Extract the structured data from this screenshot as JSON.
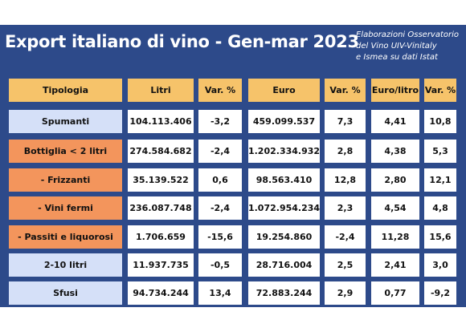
{
  "title": "Export italiano di vino - Gen-mar 2023",
  "source_note": [
    "Elaborazioni Osservatorio",
    "del Vino UIV-Vinitaly",
    "e Ismea su dati Istat"
  ],
  "colors": {
    "background": "#2d4a8a",
    "header": "#f6c36a",
    "highlight_rows": "#f3955c",
    "category_rows": "#d5e0f8",
    "value_cells": "#ffffff"
  },
  "table": {
    "headers": [
      "Tipologia",
      "Litri",
      "Var. %",
      "Euro",
      "Var. %",
      "Euro/litro",
      "Var. %"
    ],
    "rows": [
      [
        "Spumanti",
        "104.113.406",
        "-3,2",
        "459.099.537",
        "7,3",
        "4,41",
        "10,8"
      ],
      [
        "Bottiglia < 2 litri",
        "274.584.682",
        "-2,4",
        "1.202.334.932",
        "2,8",
        "4,38",
        "5,3"
      ],
      [
        "- Frizzanti",
        "35.139.522",
        "0,6",
        "98.563.410",
        "12,8",
        "2,80",
        "12,1"
      ],
      [
        "- Vini fermi",
        "236.087.748",
        "-2,4",
        "1.072.954.234",
        "2,3",
        "4,54",
        "4,8"
      ],
      [
        "- Passiti e liquorosi",
        "1.706.659",
        "-15,6",
        "19.254.860",
        "-2,4",
        "11,28",
        "15,6"
      ],
      [
        "2-10 litri",
        "11.937.735",
        "-0,5",
        "28.716.004",
        "2,5",
        "2,41",
        "3,0"
      ],
      [
        "Sfusi",
        "94.734.244",
        "13,4",
        "72.883.244",
        "2,9",
        "0,77",
        "-9,2"
      ]
    ]
  }
}
